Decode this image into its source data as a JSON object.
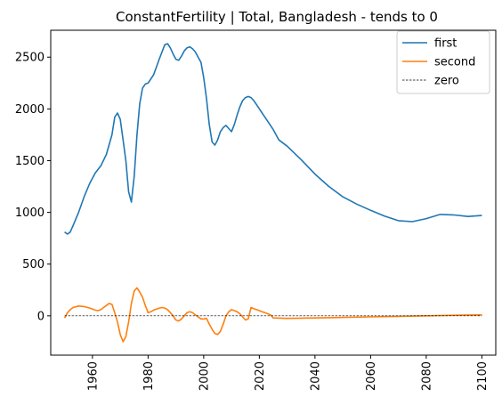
{
  "chart_data": {
    "type": "line",
    "title": "ConstantFertility | Total, Bangladesh  - tends to 0",
    "xlabel": "",
    "ylabel": "",
    "xlim": [
      1945,
      2105
    ],
    "ylim": [
      -380,
      2760
    ],
    "xticks": [
      1960,
      1980,
      2000,
      2020,
      2040,
      2060,
      2080,
      2100
    ],
    "yticks": [
      0,
      500,
      1000,
      1500,
      2000,
      2500
    ],
    "grid": false,
    "legend_position": "top-right",
    "series": [
      {
        "name": "first",
        "color": "#1f77b4",
        "style": "solid",
        "x": [
          1950,
          1951,
          1952,
          1953,
          1955,
          1957,
          1959,
          1961,
          1963,
          1965,
          1967,
          1968,
          1969,
          1970,
          1971,
          1972,
          1973,
          1974,
          1975,
          1976,
          1977,
          1978,
          1979,
          1980,
          1982,
          1984,
          1986,
          1987,
          1988,
          1989,
          1990,
          1991,
          1992,
          1993,
          1994,
          1995,
          1996,
          1997,
          1998,
          1999,
          2000,
          2001,
          2002,
          2003,
          2004,
          2005,
          2006,
          2007,
          2008,
          2009,
          2010,
          2011,
          2012,
          2013,
          2014,
          2015,
          2016,
          2017,
          2018,
          2019,
          2020,
          2021,
          2022,
          2023,
          2024,
          2025,
          2027,
          2030,
          2035,
          2040,
          2045,
          2050,
          2055,
          2060,
          2065,
          2070,
          2075,
          2080,
          2085,
          2090,
          2095,
          2100
        ],
        "y": [
          810,
          790,
          810,
          870,
          1000,
          1150,
          1280,
          1380,
          1450,
          1560,
          1750,
          1920,
          1960,
          1900,
          1700,
          1500,
          1200,
          1100,
          1350,
          1750,
          2050,
          2200,
          2240,
          2250,
          2330,
          2480,
          2620,
          2630,
          2590,
          2530,
          2480,
          2470,
          2510,
          2560,
          2590,
          2600,
          2580,
          2550,
          2500,
          2450,
          2300,
          2100,
          1850,
          1680,
          1650,
          1700,
          1780,
          1820,
          1840,
          1810,
          1780,
          1850,
          1940,
          2020,
          2080,
          2110,
          2120,
          2110,
          2080,
          2040,
          2000,
          1960,
          1920,
          1880,
          1840,
          1800,
          1700,
          1640,
          1510,
          1370,
          1250,
          1150,
          1080,
          1020,
          965,
          920,
          910,
          940,
          980,
          975,
          960,
          970
        ],
        "x_compact": true
      },
      {
        "name": "second",
        "color": "#ff7f0e",
        "style": "solid",
        "x": [
          1950,
          1951,
          1952,
          1953,
          1955,
          1957,
          1959,
          1961,
          1962,
          1963,
          1964,
          1965,
          1966,
          1967,
          1968,
          1969,
          1970,
          1971,
          1972,
          1973,
          1974,
          1975,
          1976,
          1977,
          1978,
          1979,
          1980,
          1981,
          1982,
          1983,
          1984,
          1985,
          1986,
          1987,
          1988,
          1989,
          1990,
          1991,
          1992,
          1993,
          1994,
          1995,
          1996,
          1997,
          1998,
          1999,
          2000,
          2001,
          2002,
          2003,
          2004,
          2005,
          2006,
          2007,
          2008,
          2009,
          2010,
          2011,
          2012,
          2013,
          2014,
          2015,
          2016,
          2017,
          2018,
          2019,
          2020,
          2021,
          2022,
          2023,
          2024,
          2025,
          2030,
          2040,
          2050,
          2060,
          2070,
          2080,
          2090,
          2100
        ],
        "y": [
          -20,
          30,
          60,
          80,
          95,
          90,
          75,
          55,
          50,
          60,
          80,
          100,
          120,
          110,
          30,
          -60,
          -180,
          -250,
          -200,
          -60,
          120,
          240,
          270,
          230,
          180,
          100,
          30,
          40,
          55,
          65,
          75,
          80,
          75,
          60,
          30,
          0,
          -40,
          -50,
          -30,
          0,
          30,
          40,
          30,
          10,
          -10,
          -30,
          -30,
          -25,
          -80,
          -130,
          -170,
          -180,
          -150,
          -80,
          0,
          40,
          60,
          50,
          40,
          20,
          -10,
          -40,
          -30,
          80,
          70,
          60,
          50,
          40,
          30,
          20,
          10,
          -20,
          -25,
          -20,
          -15,
          -10,
          -5,
          0,
          5,
          10
        ]
      },
      {
        "name": "zero",
        "color": "#000000",
        "style": "dashed",
        "x": [
          1950,
          2100
        ],
        "y": [
          0,
          0
        ]
      }
    ]
  }
}
